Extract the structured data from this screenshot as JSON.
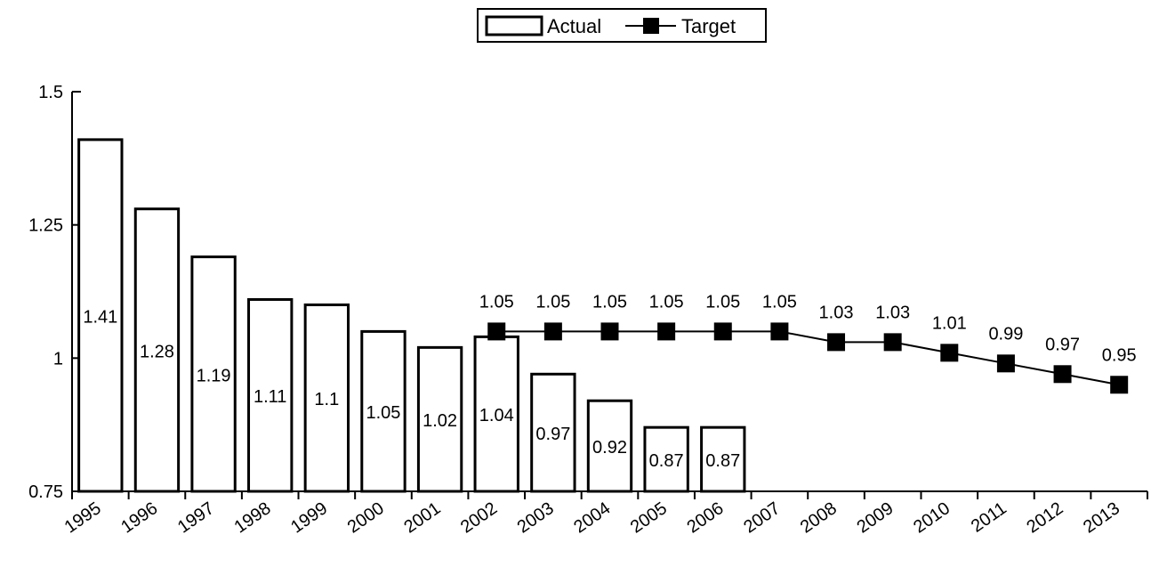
{
  "chart_data": {
    "type": "bar",
    "categories": [
      "1995",
      "1996",
      "1997",
      "1998",
      "1999",
      "2000",
      "2001",
      "2002",
      "2003",
      "2004",
      "2005",
      "2006",
      "2007",
      "2008",
      "2009",
      "2010",
      "2011",
      "2012",
      "2013"
    ],
    "series": [
      {
        "name": "Actual",
        "type": "bar",
        "values": [
          1.41,
          1.28,
          1.19,
          1.11,
          1.1,
          1.05,
          1.02,
          1.04,
          0.97,
          0.92,
          0.87,
          0.87,
          null,
          null,
          null,
          null,
          null,
          null,
          null
        ],
        "labels": [
          "1.41",
          "1.28",
          "1.19",
          "1.11",
          "1.1",
          "1.05",
          "1.02",
          "1.04",
          "0.97",
          "0.92",
          "0.87",
          "0.87",
          null,
          null,
          null,
          null,
          null,
          null,
          null
        ]
      },
      {
        "name": "Target",
        "type": "line",
        "values": [
          null,
          null,
          null,
          null,
          null,
          null,
          null,
          1.05,
          1.05,
          1.05,
          1.05,
          1.05,
          1.05,
          1.03,
          1.03,
          1.01,
          0.99,
          0.97,
          0.95
        ],
        "labels": [
          null,
          null,
          null,
          null,
          null,
          null,
          null,
          "1.05",
          "1.05",
          "1.05",
          "1.05",
          "1.05",
          "1.05",
          "1.03",
          "1.03",
          "1.01",
          "0.99",
          "0.97",
          "0.95"
        ]
      }
    ],
    "yticks": [
      {
        "value": 0.75,
        "label": "0.75"
      },
      {
        "value": 1.0,
        "label": "1"
      },
      {
        "value": 1.25,
        "label": "1.25"
      },
      {
        "value": 1.5,
        "label": "1.5"
      }
    ],
    "ylim": [
      0.75,
      1.5
    ],
    "legend": {
      "position": "top-center",
      "items": [
        "Actual",
        "Target"
      ]
    },
    "grid": false,
    "title": "",
    "xlabel": "",
    "ylabel": ""
  }
}
